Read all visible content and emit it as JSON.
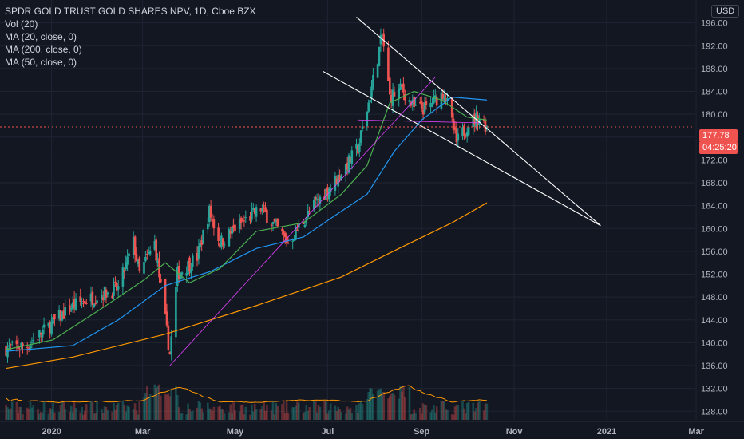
{
  "legend": {
    "title": "SPDR GOLD TRUST GOLD SHARES NPV, 1D, Cboe BZX",
    "vol": "Vol (20)",
    "ma20": "MA (20, close, 0)",
    "ma200": "MA (200, close, 0)",
    "ma50": "MA (50, close, 0)"
  },
  "currency": "USD",
  "last_price": "177.78",
  "countdown": "04:25:20",
  "colors": {
    "background": "#131722",
    "up": "#26a69a",
    "down": "#ef5350",
    "ma20": "#4caf50",
    "ma50": "#2196f3",
    "ma200": "#ff9800",
    "vol_avg": "#ff9800",
    "trendline": "#ffffff",
    "support": "#e040fb"
  },
  "chart_data": {
    "type": "candlestick",
    "title": "SPDR GOLD TRUST GOLD SHARES NPV, 1D, Cboe BZX",
    "y_ticks": [
      "128.00",
      "132.00",
      "136.00",
      "140.00",
      "144.00",
      "148.00",
      "152.00",
      "156.00",
      "160.00",
      "164.00",
      "168.00",
      "172.00",
      "176.00",
      "180.00",
      "184.00",
      "188.00",
      "192.00",
      "196.00"
    ],
    "ylim": [
      126.5,
      200
    ],
    "x_ticks": [
      "2020",
      "Mar",
      "May",
      "Jul",
      "Sep",
      "Nov",
      "2021",
      "Mar"
    ],
    "x_tick_dates": [
      "2020-01-01",
      "2020-03-01",
      "2020-05-01",
      "2020-07-01",
      "2020-09-01",
      "2020-11-01",
      "2021-01-01",
      "2021-03-01"
    ],
    "start_date": "2019-11-28",
    "closes": [
      {
        "date": "2019-12-02",
        "close": 139.0
      },
      {
        "date": "2019-12-16",
        "close": 139.5
      },
      {
        "date": "2020-01-02",
        "close": 143.5
      },
      {
        "date": "2020-01-15",
        "close": 146.5
      },
      {
        "date": "2020-02-03",
        "close": 148.5
      },
      {
        "date": "2020-02-14",
        "close": 149.5
      },
      {
        "date": "2020-02-24",
        "close": 157.5
      },
      {
        "date": "2020-02-28",
        "close": 152.0
      },
      {
        "date": "2020-03-09",
        "close": 157.5
      },
      {
        "date": "2020-03-19",
        "close": 138.0
      },
      {
        "date": "2020-03-24",
        "close": 152.0
      },
      {
        "date": "2020-04-06",
        "close": 155.0
      },
      {
        "date": "2020-04-14",
        "close": 163.0
      },
      {
        "date": "2020-04-21",
        "close": 157.5
      },
      {
        "date": "2020-05-01",
        "close": 160.0
      },
      {
        "date": "2020-05-18",
        "close": 163.5
      },
      {
        "date": "2020-06-05",
        "close": 157.5
      },
      {
        "date": "2020-06-22",
        "close": 164.0
      },
      {
        "date": "2020-07-08",
        "close": 169.0
      },
      {
        "date": "2020-07-21",
        "close": 174.0
      },
      {
        "date": "2020-07-28",
        "close": 182.0
      },
      {
        "date": "2020-08-06",
        "close": 194.0
      },
      {
        "date": "2020-08-11",
        "close": 183.0
      },
      {
        "date": "2020-08-19",
        "close": 184.5
      },
      {
        "date": "2020-08-27",
        "close": 181.0
      },
      {
        "date": "2020-09-04",
        "close": 181.0
      },
      {
        "date": "2020-09-16",
        "close": 184.0
      },
      {
        "date": "2020-09-24",
        "close": 175.0
      },
      {
        "date": "2020-10-02",
        "close": 178.5
      },
      {
        "date": "2020-10-09",
        "close": 179.5
      },
      {
        "date": "2020-10-14",
        "close": 177.78
      }
    ],
    "ma20": [
      {
        "date": "2019-12-02",
        "v": 138.8
      },
      {
        "date": "2020-01-02",
        "v": 140.5
      },
      {
        "date": "2020-02-03",
        "v": 146.0
      },
      {
        "date": "2020-03-02",
        "v": 151.0
      },
      {
        "date": "2020-03-16",
        "v": 154.0
      },
      {
        "date": "2020-04-01",
        "v": 150.5
      },
      {
        "date": "2020-04-21",
        "v": 153.0
      },
      {
        "date": "2020-05-15",
        "v": 159.5
      },
      {
        "date": "2020-06-15",
        "v": 161.0
      },
      {
        "date": "2020-07-10",
        "v": 166.0
      },
      {
        "date": "2020-07-27",
        "v": 171.0
      },
      {
        "date": "2020-08-11",
        "v": 182.0
      },
      {
        "date": "2020-08-27",
        "v": 184.0
      },
      {
        "date": "2020-09-14",
        "v": 182.5
      },
      {
        "date": "2020-10-01",
        "v": 179.5
      },
      {
        "date": "2020-10-14",
        "v": 179.0
      }
    ],
    "ma50": [
      {
        "date": "2019-12-02",
        "v": 138.5
      },
      {
        "date": "2020-01-15",
        "v": 139.5
      },
      {
        "date": "2020-02-14",
        "v": 144.0
      },
      {
        "date": "2020-03-16",
        "v": 150.0
      },
      {
        "date": "2020-04-15",
        "v": 152.5
      },
      {
        "date": "2020-05-15",
        "v": 156.5
      },
      {
        "date": "2020-06-15",
        "v": 158.5
      },
      {
        "date": "2020-07-10",
        "v": 163.0
      },
      {
        "date": "2020-07-27",
        "v": 166.0
      },
      {
        "date": "2020-08-14",
        "v": 173.5
      },
      {
        "date": "2020-09-01",
        "v": 179.0
      },
      {
        "date": "2020-09-21",
        "v": 183.0
      },
      {
        "date": "2020-10-14",
        "v": 182.5
      }
    ],
    "ma200": [
      {
        "date": "2019-12-02",
        "v": 135.5
      },
      {
        "date": "2020-01-15",
        "v": 137.5
      },
      {
        "date": "2020-03-16",
        "v": 141.5
      },
      {
        "date": "2020-05-15",
        "v": 146.5
      },
      {
        "date": "2020-07-10",
        "v": 151.5
      },
      {
        "date": "2020-08-17",
        "v": 156.5
      },
      {
        "date": "2020-09-21",
        "v": 161.0
      },
      {
        "date": "2020-10-14",
        "v": 164.5
      }
    ],
    "trendlines": [
      {
        "from": {
          "date": "2020-07-20",
          "price": 197.0
        },
        "to": {
          "date": "2020-12-28",
          "price": 160.5
        }
      },
      {
        "from": {
          "date": "2020-06-28",
          "price": 187.5
        },
        "to": {
          "date": "2020-12-28",
          "price": 160.5
        }
      },
      {
        "from": {
          "date": "2020-03-19",
          "price": 136.0
        },
        "to": {
          "date": "2020-09-10",
          "price": 186.5
        },
        "style": "support"
      },
      {
        "from": {
          "date": "2020-07-21",
          "price": 179.0
        },
        "to": {
          "date": "2020-10-09",
          "price": 178.5
        },
        "style": "support"
      }
    ]
  }
}
